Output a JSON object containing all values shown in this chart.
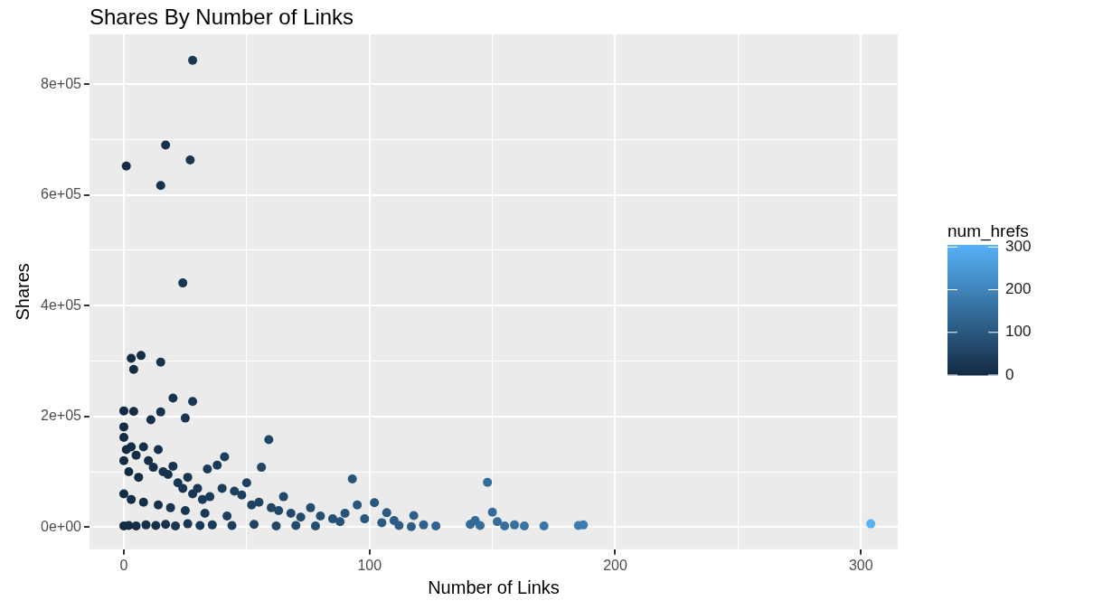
{
  "chart_data": {
    "type": "scatter",
    "title": "Shares By Number of Links",
    "xlabel": "Number of Links",
    "ylabel": "Shares",
    "clabel": "num_hrefs",
    "xlim": [
      -14,
      315
    ],
    "xticks": [
      0,
      {
        "value": 50,
        "label": null
      },
      100,
      {
        "value": 150,
        "label": null
      },
      200,
      {
        "value": 250,
        "label": null
      },
      300
    ],
    "ylim": [
      -40000,
      890000
    ],
    "yticks": [
      {
        "value": 0,
        "label": "0e+00"
      },
      {
        "value": 100000,
        "label": null
      },
      {
        "value": 200000,
        "label": "2e+05"
      },
      {
        "value": 300000,
        "label": null
      },
      {
        "value": 400000,
        "label": "4e+05"
      },
      {
        "value": 500000,
        "label": null
      },
      {
        "value": 600000,
        "label": "6e+05"
      },
      {
        "value": 700000,
        "label": null
      },
      {
        "value": 800000,
        "label": "8e+05"
      }
    ],
    "clim": [
      0,
      305
    ],
    "cticks": [
      0,
      100,
      200,
      300
    ],
    "grid": true,
    "marker": "circle",
    "x": [
      28,
      1,
      17,
      27,
      15,
      24,
      3,
      7,
      15,
      4,
      20,
      28,
      0,
      4,
      15,
      25,
      11,
      0,
      0,
      59,
      93,
      148,
      41,
      56,
      38,
      34,
      50,
      102,
      95,
      65,
      107,
      118,
      150,
      143,
      304,
      187,
      185,
      171,
      163,
      159,
      155,
      152,
      145,
      141,
      127,
      122,
      117,
      112,
      0,
      1,
      2,
      3,
      5,
      6,
      8,
      10,
      12,
      14,
      16,
      18,
      20,
      22,
      24,
      26,
      28,
      30,
      32,
      35,
      40,
      45,
      48,
      52,
      55,
      60,
      63,
      68,
      72,
      76,
      80,
      85,
      88,
      90,
      98,
      105,
      110,
      0,
      2,
      5,
      9,
      13,
      17,
      21,
      26,
      31,
      36,
      44,
      53,
      62,
      70,
      78,
      0,
      3,
      8,
      14,
      19,
      25,
      33,
      42
    ],
    "values": [
      843000,
      652000,
      690000,
      663000,
      617000,
      441000,
      305000,
      310000,
      298000,
      285000,
      233000,
      227000,
      210000,
      209000,
      208000,
      197000,
      194000,
      181000,
      162000,
      158000,
      87000,
      81000,
      127000,
      108000,
      112000,
      105000,
      80000,
      44000,
      40000,
      55000,
      26000,
      21000,
      27000,
      12000,
      6000,
      4000,
      3000,
      2000,
      2000,
      4000,
      2000,
      10000,
      3000,
      5000,
      2000,
      4000,
      1000,
      3000,
      120000,
      140000,
      100000,
      145000,
      130000,
      90000,
      145000,
      120000,
      108000,
      140000,
      100000,
      95000,
      110000,
      80000,
      70000,
      90000,
      60000,
      70000,
      50000,
      55000,
      70000,
      65000,
      58000,
      40000,
      45000,
      35000,
      30000,
      25000,
      18000,
      35000,
      20000,
      15000,
      10000,
      25000,
      15000,
      8000,
      12000,
      2000,
      3000,
      2000,
      4000,
      3000,
      5000,
      2000,
      6000,
      3000,
      4000,
      3000,
      5000,
      2000,
      3000,
      2000,
      60000,
      50000,
      45000,
      40000,
      35000,
      30000,
      25000,
      20000
    ],
    "cvalues": [
      28,
      1,
      17,
      27,
      15,
      24,
      3,
      7,
      15,
      4,
      20,
      28,
      0,
      4,
      15,
      25,
      11,
      0,
      0,
      59,
      93,
      148,
      41,
      56,
      38,
      34,
      50,
      102,
      95,
      65,
      107,
      118,
      150,
      143,
      304,
      187,
      185,
      171,
      163,
      159,
      155,
      152,
      145,
      141,
      127,
      122,
      117,
      112,
      0,
      1,
      2,
      3,
      5,
      6,
      8,
      10,
      12,
      14,
      16,
      18,
      20,
      22,
      24,
      26,
      28,
      30,
      32,
      35,
      40,
      45,
      48,
      52,
      55,
      60,
      63,
      68,
      72,
      76,
      80,
      85,
      88,
      90,
      98,
      105,
      110,
      0,
      2,
      5,
      9,
      13,
      17,
      21,
      26,
      31,
      36,
      44,
      53,
      62,
      70,
      78,
      0,
      3,
      8,
      14,
      19,
      25,
      33,
      42
    ]
  }
}
